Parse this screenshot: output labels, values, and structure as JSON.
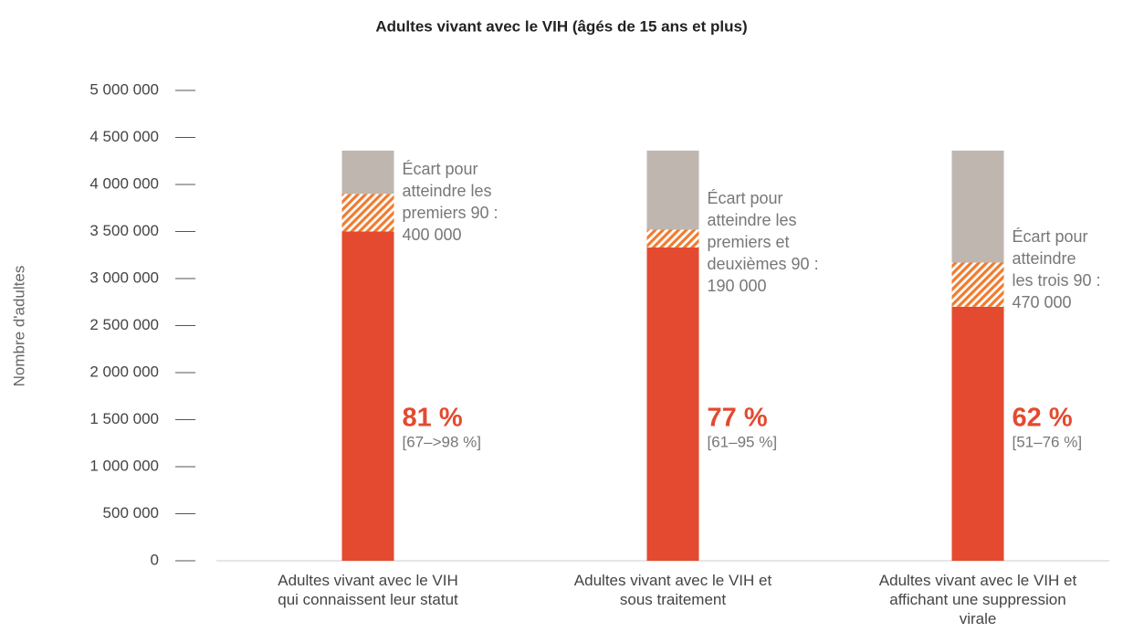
{
  "chart_data": {
    "type": "bar",
    "stacked": true,
    "title": "Adultes vivant avec le VIH (âgés de 15 ans et plus)",
    "y_label": "Nombre d'adultes",
    "categories": [
      "Adultes vivant avec le VIH qui connaissent leur statut",
      "Adultes vivant avec le VIH et sous traitement",
      "Adultes vivant avec le VIH et affichant une suppression virale"
    ],
    "series": [
      {
        "color": "#e34a2f",
        "values": [
          3500000,
          3330000,
          2700000
        ]
      },
      {
        "color": "#f07c30",
        "pattern": "hatch",
        "values": [
          400000,
          190000,
          470000
        ],
        "value_labels": [
          "400 000",
          "190 000",
          "470 000"
        ]
      },
      {
        "color": "#bfb6b0",
        "values": [
          460000,
          840000,
          1190000
        ]
      }
    ],
    "annotations": [
      {
        "lines": [
          "Écart pour",
          "atteindre les",
          "premiers 90 :"
        ],
        "percent": "81 %",
        "range": "[67–>98 %]"
      },
      {
        "lines": [
          "Écart pour",
          "atteindre les",
          "premiers et",
          "deuxièmes 90 :"
        ],
        "percent": "77 %",
        "range": "[61–95 %]"
      },
      {
        "lines": [
          "Écart pour",
          "atteindre",
          "les trois 90 :"
        ],
        "percent": "62 %",
        "range": "[51–76 %]"
      }
    ],
    "ylim": [
      0,
      5000000
    ],
    "yticks": [
      {
        "value": 0,
        "label": "0"
      },
      {
        "value": 500000,
        "label": "500 000"
      },
      {
        "value": 1000000,
        "label": "1 000 000"
      },
      {
        "value": 1500000,
        "label": "1 500 000"
      },
      {
        "value": 2000000,
        "label": "2 000 000"
      },
      {
        "value": 2500000,
        "label": "2 500 000"
      },
      {
        "value": 3000000,
        "label": "3 000 000"
      },
      {
        "value": 3500000,
        "label": "3 500 000"
      },
      {
        "value": 4000000,
        "label": "4 000 000"
      },
      {
        "value": 4500000,
        "label": "4 500 000"
      },
      {
        "value": 5000000,
        "label": "5 000 000"
      }
    ]
  }
}
